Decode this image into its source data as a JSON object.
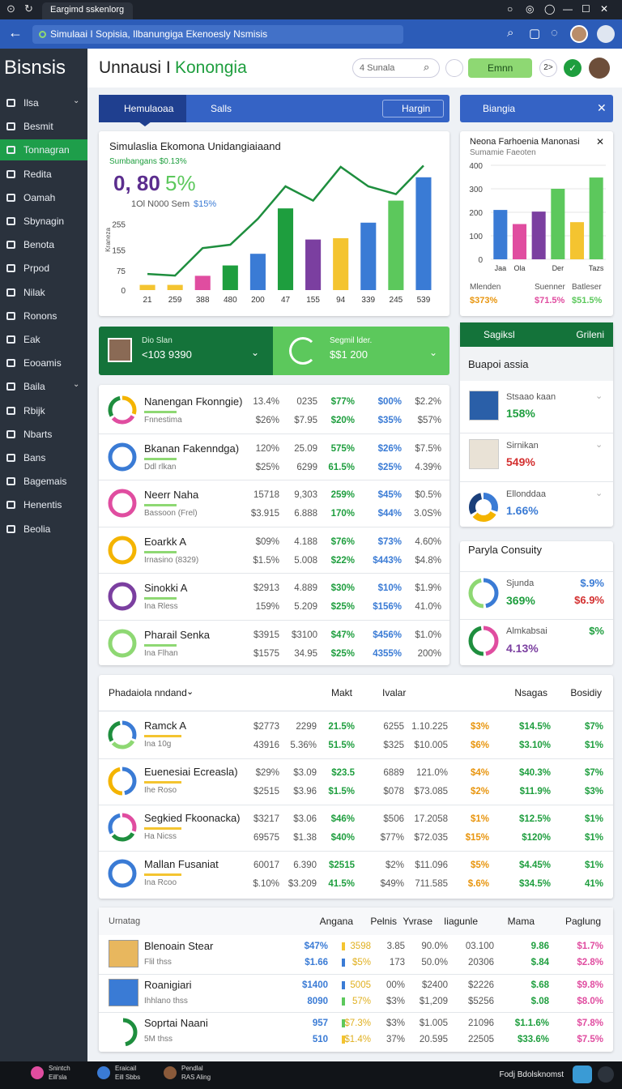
{
  "browser": {
    "tab": "Eargimd sskenlorg",
    "url": "Simulaai I Sopisia, Ilbanungiga Ekenoesly Nsmisis"
  },
  "sidebar": {
    "title": "Bisnsis",
    "active": 2,
    "items": [
      "Ilsa",
      "Besmit",
      "Tonnagran",
      "Redita",
      "Oamah",
      "Sbynagin",
      "Benota",
      "Prpod",
      "Nilak",
      "Ronons",
      "Eak",
      "Eooamis",
      "Baila",
      "Rbijk",
      "Nbarts",
      "Bans",
      "Bagemais",
      "Henentis",
      "Beolia"
    ]
  },
  "header": {
    "title": "Unnausi I",
    "title_accent": "Konongia",
    "search": "4 Sunala",
    "button": "Emnn",
    "badge": "2>"
  },
  "tabs": [
    "Hemulaoaa",
    "Salls",
    "Hargin"
  ],
  "side_tab": "Biangia",
  "chart_data": [
    {
      "type": "bar",
      "title": "Simulaslia Ekomona Unidangiaiaand",
      "subtitle": "Sumbangans $0.13%",
      "headline": "0, 80",
      "headline_accent": "5%",
      "note": "1Ol N000 Sem",
      "note_accent": "$15%",
      "y_label": "Kraneza",
      "categories": [
        "21",
        "259",
        "388",
        "480",
        "200",
        "47",
        "155",
        "94",
        "339",
        "245",
        "539"
      ],
      "series": [
        {
          "type": "bar",
          "colors": [
            "#f4c430",
            "#f4c430",
            "#e04da0",
            "#1e9e3e",
            "#3a7bd5",
            "#1e9e3e",
            "#7b3fa0",
            "#f4c430",
            "#3a7bd5",
            "#5cc85c",
            "#3a7bd5"
          ],
          "values": [
            20,
            20,
            55,
            95,
            140,
            315,
            195,
            200,
            260,
            345,
            435
          ]
        },
        {
          "type": "line",
          "color": "#1e8e3e",
          "values": [
            62,
            56,
            162,
            175,
            275,
            400,
            345,
            475,
            400,
            370,
            480
          ]
        }
      ],
      "ylim": [
        0,
        525
      ],
      "yticks": [
        0,
        75,
        155,
        255
      ],
      "grid": false
    },
    {
      "type": "bar",
      "title": "Neona Farhoenia Manonasi",
      "subtitle": "Sumamie Faeoten",
      "categories": [
        "Jaa",
        "Ola",
        null,
        "Der",
        null,
        "Tazs"
      ],
      "values": [
        210,
        150,
        203,
        300,
        158,
        348
      ],
      "colors": [
        "#3a7bd5",
        "#e04da0",
        "#7b3fa0",
        "#5cc85c",
        "#f4c430",
        "#5cc85c"
      ],
      "ylim": [
        0,
        400
      ],
      "yticks": [
        0,
        100,
        200,
        300,
        400
      ],
      "grid": true,
      "stats": [
        {
          "label": "Mlenden",
          "value": "$373%",
          "color": "#e8950e"
        },
        {
          "label": "Suenner",
          "value": "$71.5%",
          "color": "#e04da0"
        },
        {
          "label": "Batleser",
          "value": "$51.5%",
          "color": "#5cc85c"
        }
      ]
    }
  ],
  "stats_strip": {
    "left_title": "Dio Slan",
    "left_value": "<103 9390",
    "right_title": "Segmil lder.",
    "right_value": "$$1 200"
  },
  "table1": {
    "columns_colors": [
      "#555",
      "#555",
      "#1e9e3e",
      "#3a7bd5",
      "#555"
    ],
    "rows": [
      {
        "name": "Nanengan Fkonngie)",
        "sub": "Fnnestima",
        "ring": [
          "#f4b400",
          "#e04da0",
          "#1e8e3e"
        ],
        "cells": [
          [
            "13.4%",
            "0235",
            "$77%",
            "$00%",
            "$2.2%"
          ],
          [
            "$26%",
            "$7.95",
            "$20%",
            "$35%",
            "$57%"
          ]
        ]
      },
      {
        "name": "Bkanan Fakenndga)",
        "sub": "Ddl rlkan",
        "ring": [
          "#3a7bd5"
        ],
        "cells": [
          [
            "120%",
            "25.09",
            "575%",
            "$26%",
            "$7.5%"
          ],
          [
            "$25%",
            "6299",
            "61.5%",
            "$25%",
            "4.39%"
          ]
        ]
      },
      {
        "name": "Neerr Naha",
        "sub": "Bassoon (Frel)",
        "ring": [
          "#e04da0"
        ],
        "cells": [
          [
            "15718",
            "9,303",
            "259%",
            "$45%",
            "$0.5%"
          ],
          [
            "$3.915",
            "6.888",
            "170%",
            "$44%",
            "3.0S%"
          ]
        ]
      },
      {
        "name": "Eoarkk A",
        "sub": "Irnasino (8329)",
        "ring": [
          "#f4b400"
        ],
        "cells": [
          [
            "$09%",
            "4.188",
            "$76%",
            "$73%",
            "4.60%"
          ],
          [
            "$1.5%",
            "5.008",
            "$22%",
            "$443%",
            "$4.8%"
          ]
        ]
      },
      {
        "name": "Sinokki A",
        "sub": "Ina Rless",
        "ring": [
          "#7b3fa0"
        ],
        "cells": [
          [
            "$2913",
            "4.889",
            "$30%",
            "$10%",
            "$1.9%"
          ],
          [
            "159%",
            "5.209",
            "$25%",
            "$156%",
            "41.0%"
          ]
        ]
      },
      {
        "name": "Pharail Senka",
        "sub": "Ina Flhan",
        "ring": [
          "#8ed873"
        ],
        "cells": [
          [
            "$3915",
            "$3100",
            "$47%",
            "$456%",
            "$1.0%"
          ],
          [
            "$1575",
            "34.95",
            "$25%",
            "4355%",
            "200%"
          ]
        ]
      }
    ]
  },
  "panel": {
    "title": "Sagiksl",
    "action": "Grileni",
    "section": "Buapoi assia",
    "items": [
      {
        "name": "Stsaao kaan",
        "value": "158%",
        "color": "#1e9e3e"
      },
      {
        "name": "Sirnikan",
        "value": "549%",
        "color": "#d32f2f"
      },
      {
        "name": "Ellonddaa",
        "value": "1.66%",
        "color": "#3a7bd5"
      }
    ]
  },
  "consuity": {
    "title": "Paryla Consuity",
    "items": [
      {
        "name": "Sjunda",
        "value": "369%",
        "value_color": "#1e9e3e",
        "right": [
          "$.9%",
          "$6.9%"
        ],
        "right_colors": [
          "#3a7bd5",
          "#d32f2f"
        ],
        "ring": [
          "#3a7bd5",
          "#8ed873"
        ]
      },
      {
        "name": "Almkabsai",
        "value": "4.13%",
        "value_color": "#7b3fa0",
        "right": [
          "$%"
        ],
        "right_colors": [
          "#1e9e3e"
        ],
        "ring": [
          "#e04da0",
          "#1e8e3e"
        ]
      }
    ]
  },
  "table2": {
    "title": "Phadaiola nndand",
    "headers": [
      "Makt",
      "Ivalar",
      "Nsagas",
      "Bosidiy"
    ],
    "columns_colors": [
      "#555",
      "#555",
      "#1e9e3e",
      "#555",
      "#555",
      "#e8950e",
      "#1e9e3e",
      "#1e9e3e"
    ],
    "rows": [
      {
        "name": "Ramck A",
        "sub": "Ina 10g",
        "ring": [
          "#3a7bd5",
          "#8ed873",
          "#1e8e3e"
        ],
        "cells": [
          [
            "$2773",
            "2299",
            "21.5%",
            "6255",
            "1.10.225",
            "$3%",
            "$14.5%",
            "$7%"
          ],
          [
            "43916",
            "5.36%",
            "51.5%",
            "$325",
            "$10.005",
            "$6%",
            "$3.10%",
            "$1%"
          ]
        ]
      },
      {
        "name": "Euenesiai Ecreasla)",
        "sub": "Ihe Roso",
        "ring": [
          "#3a7bd5",
          "#f4b400"
        ],
        "cells": [
          [
            "$29%",
            "$3.09",
            "$23.5",
            "6889",
            "121.0%",
            "$4%",
            "$40.3%",
            "$7%"
          ],
          [
            "$2515",
            "$3.96",
            "$1.5%",
            "$078",
            "$73.085",
            "$2%",
            "$11.9%",
            "$3%"
          ]
        ]
      },
      {
        "name": "Segkied Fkoonacka)",
        "sub": "Ha Nicss",
        "ring": [
          "#e04da0",
          "#1e8e3e",
          "#3a7bd5"
        ],
        "cells": [
          [
            "$3217",
            "$3.06",
            "$46%",
            "$506",
            "17.2058",
            "$1%",
            "$12.5%",
            "$1%"
          ],
          [
            "69575",
            "$1.38",
            "$40%",
            "$77%",
            "$72.035",
            "$15%",
            "$120%",
            "$1%"
          ]
        ]
      },
      {
        "name": "Mallan Fusaniat",
        "sub": "Ina Rcoo",
        "ring": [
          "#3a7bd5"
        ],
        "cells": [
          [
            "60017",
            "6.390",
            "$2515",
            "$2%",
            "$11.096",
            "$5%",
            "$4.45%",
            "$1%"
          ],
          [
            "$.10%",
            "$3.209",
            "41.5%",
            "$49%",
            "711.585",
            "$.6%",
            "$34.5%",
            "41%"
          ]
        ]
      }
    ]
  },
  "table3": {
    "title": "Urnatag",
    "headers": [
      "Angana",
      "Pelnis",
      "Yvrase",
      "Iiagunle",
      "Mama",
      "Paglung"
    ],
    "columns_colors": [
      "#3a7bd5",
      "#555",
      "#555",
      "#555",
      "#555",
      "#1e9e3e",
      "#e04da0"
    ],
    "rows": [
      {
        "name": "Blenoain Stear",
        "sub": "Flil thss",
        "cells": [
          [
            "$47%",
            "3598",
            "3.85",
            "90.0%",
            "03.100",
            "9.86",
            "$1.7%"
          ],
          [
            "$1.66",
            "$5%",
            "173",
            "50.0%",
            "20306",
            "$.84",
            "$2.8%"
          ]
        ]
      },
      {
        "name": "Roanigiari",
        "sub": "Ihhlano thss",
        "cells": [
          [
            "$1400",
            "5005",
            "00%",
            "$2400",
            "$2226",
            "$.68",
            "$9.8%"
          ],
          [
            "8090",
            "57%",
            "$3%",
            "$1,209",
            "$5256",
            "$.08",
            "$8.0%"
          ]
        ]
      },
      {
        "name": "Soprtai Naani",
        "sub": "5M thss",
        "cells": [
          [
            "957",
            "$7.3%",
            "$3%",
            "$1.005",
            "21096",
            "$1.1.6%",
            "$7.8%"
          ],
          [
            "510",
            "$1.4%",
            "37%",
            "20.595",
            "22505",
            "$33.6%",
            "$7.5%"
          ]
        ]
      }
    ]
  },
  "taskbar": {
    "items": [
      {
        "title": "Snintch",
        "sub": "Eill'sla"
      },
      {
        "title": "Eraicail",
        "sub": "Eill Sbbs"
      },
      {
        "title": "Pendlal",
        "sub": "RAS Aling"
      }
    ],
    "right": "Fodj Bdolsknomst"
  }
}
